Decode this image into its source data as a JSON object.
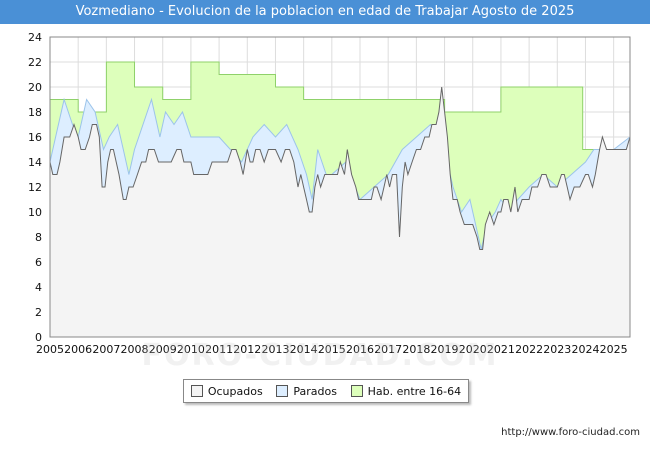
{
  "title": "Vozmediano - Evolucion de la poblacion en edad de Trabajar Agosto de 2025",
  "source": "http://www.foro-ciudad.com",
  "watermark": "FORO-CIUDAD.COM",
  "colors": {
    "ocupados_fill": "#f4f4f4",
    "ocupados_line": "#666666",
    "parados_fill": "#ddeeff",
    "parados_line": "#9cc4ea",
    "hab_fill": "#ddffbb",
    "hab_line": "#8fd16a",
    "title_bg": "#4a90d6"
  },
  "legend": {
    "ocupados": "Ocupados",
    "parados": "Parados",
    "hab": "Hab. entre 16-64"
  },
  "chart_data": {
    "type": "area",
    "title": "Vozmediano - Evolucion de la poblacion en edad de Trabajar Agosto de 2025",
    "xlabel": "",
    "ylabel": "",
    "x_ticks": [
      "2005",
      "2006",
      "2007",
      "2008",
      "2009",
      "2010",
      "2011",
      "2012",
      "2013",
      "2014",
      "2015",
      "2016",
      "2017",
      "2018",
      "2019",
      "2020",
      "2021",
      "2022",
      "2023",
      "2024",
      "2025"
    ],
    "y_ticks": [
      0,
      2,
      4,
      6,
      8,
      10,
      12,
      14,
      16,
      18,
      20,
      22,
      24
    ],
    "xlim": [
      2005,
      2025.58
    ],
    "ylim": [
      0,
      24
    ],
    "grid": true,
    "legend_position": "bottom",
    "series": [
      {
        "name": "Hab. entre 16-64",
        "points": [
          [
            2005,
            19
          ],
          [
            2006,
            19
          ],
          [
            2006,
            18
          ],
          [
            2007,
            18
          ],
          [
            2007,
            22
          ],
          [
            2008,
            22
          ],
          [
            2008,
            20
          ],
          [
            2009,
            20
          ],
          [
            2009,
            19
          ],
          [
            2010,
            19
          ],
          [
            2010,
            22
          ],
          [
            2011,
            22
          ],
          [
            2011,
            21
          ],
          [
            2013,
            21
          ],
          [
            2013,
            20
          ],
          [
            2014,
            20
          ],
          [
            2014,
            19
          ],
          [
            2019,
            19
          ],
          [
            2019,
            18
          ],
          [
            2021,
            18
          ],
          [
            2021,
            20
          ],
          [
            2023.9,
            20
          ],
          [
            2023.9,
            15
          ],
          [
            2025.58,
            15
          ]
        ]
      },
      {
        "name": "Parados",
        "points": [
          [
            2005,
            14
          ],
          [
            2005.2,
            16
          ],
          [
            2005.5,
            19
          ],
          [
            2005.8,
            17
          ],
          [
            2006,
            16
          ],
          [
            2006.3,
            19
          ],
          [
            2006.6,
            18
          ],
          [
            2006.9,
            15
          ],
          [
            2007.1,
            16
          ],
          [
            2007.4,
            17
          ],
          [
            2007.6,
            15
          ],
          [
            2007.8,
            13
          ],
          [
            2008,
            15
          ],
          [
            2008.3,
            17
          ],
          [
            2008.6,
            19
          ],
          [
            2008.9,
            16
          ],
          [
            2009.1,
            18
          ],
          [
            2009.4,
            17
          ],
          [
            2009.7,
            18
          ],
          [
            2010,
            16
          ],
          [
            2011,
            16
          ],
          [
            2011.4,
            15
          ],
          [
            2011.8,
            14
          ],
          [
            2012.2,
            16
          ],
          [
            2012.6,
            17
          ],
          [
            2013,
            16
          ],
          [
            2013.4,
            17
          ],
          [
            2013.8,
            15
          ],
          [
            2014.1,
            13
          ],
          [
            2014.3,
            11
          ],
          [
            2014.5,
            15
          ],
          [
            2014.8,
            13
          ],
          [
            2015,
            13
          ],
          [
            2015.5,
            14
          ],
          [
            2016,
            11
          ],
          [
            2016.5,
            12
          ],
          [
            2017,
            13
          ],
          [
            2017.5,
            15
          ],
          [
            2018,
            16
          ],
          [
            2018.5,
            17
          ],
          [
            2019,
            15
          ],
          [
            2019.3,
            12
          ],
          [
            2019.6,
            10
          ],
          [
            2019.9,
            11
          ],
          [
            2020.1,
            9
          ],
          [
            2020.3,
            7
          ],
          [
            2020.5,
            9
          ],
          [
            2020.8,
            10
          ],
          [
            2021,
            11
          ],
          [
            2021.3,
            10
          ],
          [
            2021.6,
            11
          ],
          [
            2022,
            12
          ],
          [
            2022.5,
            13
          ],
          [
            2023,
            12
          ],
          [
            2023.5,
            13
          ],
          [
            2024,
            14
          ],
          [
            2024.3,
            15
          ],
          [
            2024.6,
            15
          ],
          [
            2025,
            15
          ],
          [
            2025.58,
            16
          ]
        ]
      },
      {
        "name": "Ocupados",
        "points": [
          [
            2005,
            14
          ],
          [
            2005.1,
            13
          ],
          [
            2005.25,
            13
          ],
          [
            2005.35,
            14
          ],
          [
            2005.5,
            16
          ],
          [
            2005.7,
            16
          ],
          [
            2005.85,
            17
          ],
          [
            2006,
            16
          ],
          [
            2006.1,
            15
          ],
          [
            2006.25,
            15
          ],
          [
            2006.4,
            16
          ],
          [
            2006.5,
            17
          ],
          [
            2006.65,
            17
          ],
          [
            2006.75,
            16
          ],
          [
            2006.85,
            12
          ],
          [
            2006.95,
            12
          ],
          [
            2007.05,
            14
          ],
          [
            2007.15,
            15
          ],
          [
            2007.25,
            15
          ],
          [
            2007.35,
            14
          ],
          [
            2007.45,
            13
          ],
          [
            2007.6,
            11
          ],
          [
            2007.7,
            11
          ],
          [
            2007.8,
            12
          ],
          [
            2007.95,
            12
          ],
          [
            2008.1,
            13
          ],
          [
            2008.25,
            14
          ],
          [
            2008.4,
            14
          ],
          [
            2008.5,
            15
          ],
          [
            2008.7,
            15
          ],
          [
            2008.85,
            14
          ],
          [
            2009.0,
            14
          ],
          [
            2009.3,
            14
          ],
          [
            2009.5,
            15
          ],
          [
            2009.65,
            15
          ],
          [
            2009.75,
            14
          ],
          [
            2010.0,
            14
          ],
          [
            2010.1,
            13
          ],
          [
            2010.6,
            13
          ],
          [
            2010.75,
            14
          ],
          [
            2011.0,
            14
          ],
          [
            2011.3,
            14
          ],
          [
            2011.45,
            15
          ],
          [
            2011.6,
            15
          ],
          [
            2011.75,
            14
          ],
          [
            2011.85,
            13
          ],
          [
            2012.0,
            15
          ],
          [
            2012.1,
            14
          ],
          [
            2012.2,
            14
          ],
          [
            2012.3,
            15
          ],
          [
            2012.45,
            15
          ],
          [
            2012.6,
            14
          ],
          [
            2012.75,
            15
          ],
          [
            2013.0,
            15
          ],
          [
            2013.2,
            14
          ],
          [
            2013.35,
            15
          ],
          [
            2013.5,
            15
          ],
          [
            2013.65,
            14
          ],
          [
            2013.8,
            12
          ],
          [
            2013.9,
            13
          ],
          [
            2014.0,
            12
          ],
          [
            2014.1,
            11
          ],
          [
            2014.2,
            10
          ],
          [
            2014.3,
            10
          ],
          [
            2014.4,
            12
          ],
          [
            2014.5,
            13
          ],
          [
            2014.6,
            12
          ],
          [
            2014.75,
            13
          ],
          [
            2015.0,
            13
          ],
          [
            2015.2,
            13
          ],
          [
            2015.3,
            14
          ],
          [
            2015.45,
            13
          ],
          [
            2015.55,
            15
          ],
          [
            2015.7,
            13
          ],
          [
            2015.85,
            12
          ],
          [
            2015.95,
            11
          ],
          [
            2016.1,
            11
          ],
          [
            2016.4,
            11
          ],
          [
            2016.5,
            12
          ],
          [
            2016.6,
            12
          ],
          [
            2016.75,
            11
          ],
          [
            2016.85,
            12
          ],
          [
            2016.95,
            13
          ],
          [
            2017.05,
            12
          ],
          [
            2017.15,
            13
          ],
          [
            2017.3,
            13
          ],
          [
            2017.4,
            8
          ],
          [
            2017.5,
            12
          ],
          [
            2017.6,
            14
          ],
          [
            2017.7,
            13
          ],
          [
            2017.85,
            14
          ],
          [
            2018.0,
            15
          ],
          [
            2018.15,
            15
          ],
          [
            2018.3,
            16
          ],
          [
            2018.45,
            16
          ],
          [
            2018.55,
            17
          ],
          [
            2018.7,
            17
          ],
          [
            2018.8,
            18
          ],
          [
            2018.9,
            20
          ],
          [
            2019.0,
            18
          ],
          [
            2019.1,
            16
          ],
          [
            2019.2,
            13
          ],
          [
            2019.3,
            11
          ],
          [
            2019.45,
            11
          ],
          [
            2019.55,
            10
          ],
          [
            2019.7,
            9
          ],
          [
            2019.85,
            9
          ],
          [
            2020.0,
            9
          ],
          [
            2020.15,
            8
          ],
          [
            2020.25,
            7
          ],
          [
            2020.35,
            7
          ],
          [
            2020.45,
            9
          ],
          [
            2020.6,
            10
          ],
          [
            2020.75,
            9
          ],
          [
            2020.9,
            10
          ],
          [
            2021.0,
            10
          ],
          [
            2021.1,
            11
          ],
          [
            2021.25,
            11
          ],
          [
            2021.35,
            10
          ],
          [
            2021.5,
            12
          ],
          [
            2021.6,
            10
          ],
          [
            2021.75,
            11
          ],
          [
            2022.0,
            11
          ],
          [
            2022.1,
            12
          ],
          [
            2022.3,
            12
          ],
          [
            2022.45,
            13
          ],
          [
            2022.6,
            13
          ],
          [
            2022.75,
            12
          ],
          [
            2023.0,
            12
          ],
          [
            2023.15,
            13
          ],
          [
            2023.25,
            13
          ],
          [
            2023.35,
            12
          ],
          [
            2023.45,
            11
          ],
          [
            2023.6,
            12
          ],
          [
            2023.8,
            12
          ],
          [
            2024.0,
            13
          ],
          [
            2024.1,
            13
          ],
          [
            2024.25,
            12
          ],
          [
            2024.35,
            13
          ],
          [
            2024.5,
            15
          ],
          [
            2024.6,
            16
          ],
          [
            2024.75,
            15
          ],
          [
            2024.9,
            15
          ],
          [
            2025.2,
            15
          ],
          [
            2025.45,
            15
          ],
          [
            2025.58,
            16
          ]
        ]
      }
    ]
  }
}
